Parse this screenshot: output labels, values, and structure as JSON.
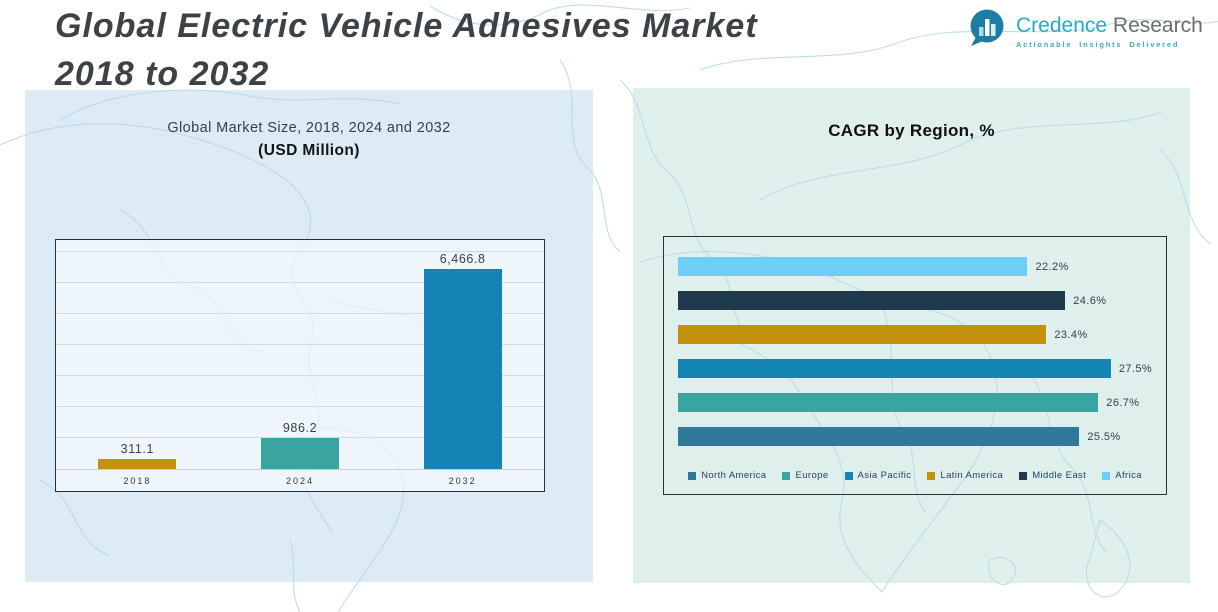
{
  "header": {
    "title_line1": "Global Electric Vehicle Adhesives Market",
    "title_line2": "2018 to 2032"
  },
  "logo": {
    "brand_primary": "Credence",
    "brand_secondary": " Research",
    "tagline": "Actionable Insights Delivered"
  },
  "colors": {
    "brand_teal": "#29A9C5",
    "panel_left_bg": "#DCEBF5",
    "panel_right_bg": "#DFEFEC",
    "gold": "#C3910E",
    "teal": "#3AA5A0",
    "blue": "#1484B4",
    "steel_blue": "#31799B",
    "dark_navy": "#1E3A4C",
    "sky_blue": "#6DCFF6",
    "map_line": "#B7DAE9"
  },
  "chart_data": [
    {
      "type": "bar",
      "orientation": "vertical",
      "title": "Global Market Size, 2018, 2024 and 2032",
      "subtitle": "(USD Million)",
      "categories": [
        "2018",
        "2024",
        "2032"
      ],
      "values": [
        311.1,
        986.2,
        6466.8
      ],
      "value_labels": [
        "311.1",
        "986.2",
        "6,466.8"
      ],
      "bar_colors": [
        "#C3910E",
        "#3AA5A0",
        "#1484B4"
      ],
      "xlabel": "",
      "ylabel": "",
      "ylim": [
        0,
        7400
      ],
      "grid": true,
      "grid_step": 1000,
      "grid_max": 7000,
      "legend_position": "none"
    },
    {
      "type": "bar",
      "orientation": "horizontal",
      "title": "CAGR by Region, %",
      "categories": [
        "Africa",
        "Middle East",
        "Latin America",
        "Asia Pacific",
        "Europe",
        "North America"
      ],
      "values": [
        22.2,
        24.6,
        23.4,
        27.5,
        26.7,
        25.5
      ],
      "value_labels": [
        "22.2%",
        "24.6%",
        "23.4%",
        "27.5%",
        "26.7%",
        "25.5%"
      ],
      "bar_colors": [
        "#6DCFF6",
        "#1E3A4C",
        "#C3910E",
        "#1484B4",
        "#3AA5A0",
        "#31799B"
      ],
      "xlabel": "",
      "ylabel": "",
      "xlim": [
        0,
        31
      ],
      "grid": false,
      "legend_position": "bottom",
      "legend": [
        {
          "label": "North America",
          "color": "#31799B"
        },
        {
          "label": "Europe",
          "color": "#3AA5A0"
        },
        {
          "label": "Asia Pacific",
          "color": "#1484B4"
        },
        {
          "label": "Latin America",
          "color": "#C3910E"
        },
        {
          "label": "Middle East",
          "color": "#1E3A4C"
        },
        {
          "label": "Africa",
          "color": "#6DCFF6"
        }
      ]
    }
  ]
}
